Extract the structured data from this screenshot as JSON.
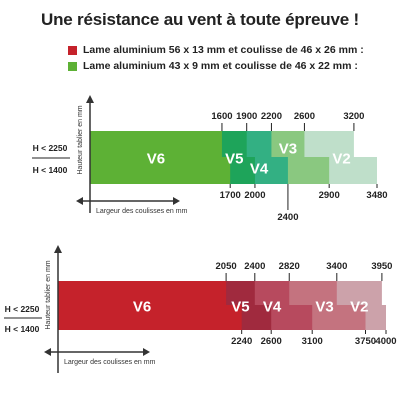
{
  "title": "Une résistance au vent à toute épreuve !",
  "legend": [
    {
      "label": "Lame aluminium 56 x 13 mm et coulisse de 46 x 26 mm :",
      "color": "#c5222b"
    },
    {
      "label": "Lame aluminium 43 x 9 mm et coulisse de 46 x 22 mm :",
      "color": "#5db135"
    }
  ],
  "chart_data": [
    {
      "type": "bar",
      "ylabel": "Hauteur tablier en mm",
      "xlabel": "Largeur des coulisses en mm",
      "rows": [
        "H < 2250",
        "H < 1400"
      ],
      "xlim": [
        0,
        3480
      ],
      "series": [
        {
          "name": "V6",
          "values": [
            1600,
            1700
          ],
          "color": "#5db135"
        },
        {
          "name": "V5",
          "values": [
            1900,
            2000
          ],
          "color": "#1ea45a"
        },
        {
          "name": "V4",
          "values": [
            2200,
            2400
          ],
          "color": "#33b083"
        },
        {
          "name": "V3",
          "values": [
            2600,
            2900
          ],
          "color": "#8ac880"
        },
        {
          "name": "V2",
          "values": [
            3200,
            3480
          ],
          "color": "#bfdfca"
        }
      ],
      "top_labels": [
        "1600",
        "1900",
        "2200",
        "2600",
        "3200"
      ],
      "bottom_labels": [
        "1700",
        "2000",
        "2400",
        "2900",
        "3480"
      ]
    },
    {
      "type": "bar",
      "ylabel": "Hauteur tablier en mm",
      "xlabel": "Largeur des coulisses en mm",
      "rows": [
        "H < 2250",
        "H < 1400"
      ],
      "xlim": [
        0,
        4000
      ],
      "series": [
        {
          "name": "V6",
          "values": [
            2050,
            2240
          ],
          "color": "#c5222b"
        },
        {
          "name": "V5",
          "values": [
            2400,
            2600
          ],
          "color": "#a02a3e"
        },
        {
          "name": "V4",
          "values": [
            2820,
            3100
          ],
          "color": "#b74a5e"
        },
        {
          "name": "V3",
          "values": [
            3400,
            3750
          ],
          "color": "#c4737f"
        },
        {
          "name": "V2",
          "values": [
            3950,
            4000
          ],
          "color": "#cca2aa"
        }
      ],
      "top_labels": [
        "2050",
        "2400",
        "2820",
        "3400",
        "3950"
      ],
      "bottom_labels": [
        "2240",
        "2600",
        "3100",
        "3750",
        "4000"
      ]
    }
  ]
}
